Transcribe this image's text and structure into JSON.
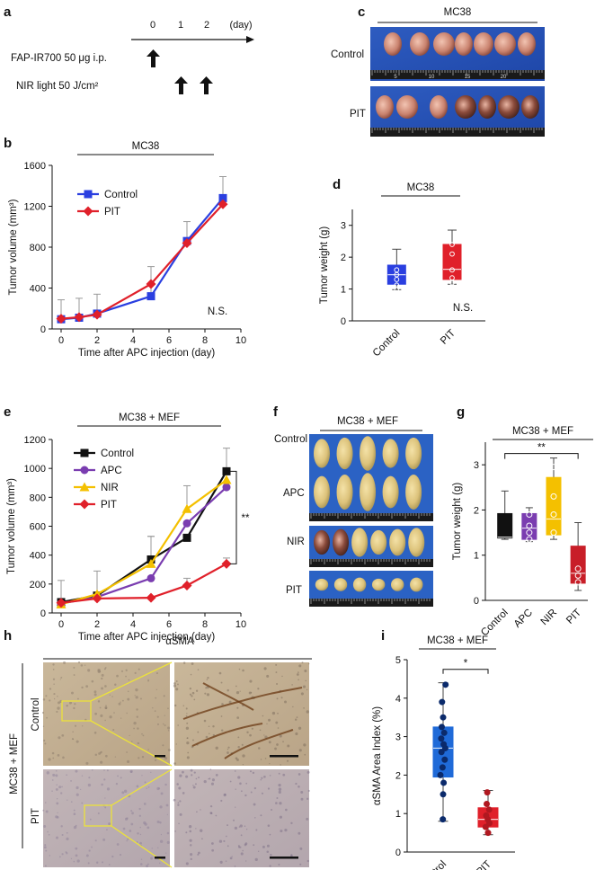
{
  "panel_letters": [
    "a",
    "b",
    "c",
    "d",
    "e",
    "f",
    "g",
    "h",
    "i"
  ],
  "panel_a": {
    "days": [
      "0",
      "1",
      "2"
    ],
    "unit": "(day)",
    "agent": "FAP-IR700 50 μg i.p.",
    "light": "NIR light 50 J/cm²"
  },
  "panel_c": {
    "title": "MC38",
    "rows": [
      "Control",
      "PIT"
    ],
    "ruler_marks": [
      "5",
      "10",
      "15",
      "20"
    ]
  },
  "panel_f": {
    "title": "MC38 + MEF",
    "rows": [
      "Control",
      "APC",
      "NIR",
      "PIT"
    ]
  },
  "panel_h": {
    "marker": "αSMA",
    "group": "MC38 + MEF",
    "rows": [
      "Control",
      "PIT"
    ]
  },
  "colors": {
    "blue": "#2a3fe0",
    "red": "#e0202a",
    "black": "#111111",
    "purple": "#7a3db0",
    "yellow": "#f4c000",
    "darkred": "#c81e28",
    "error": "#999999"
  },
  "chart_data": [
    {
      "id": "b",
      "type": "line",
      "title": "MC38",
      "xlabel": "Time after APC injection (day)",
      "ylabel": "Tumor volume (mm³)",
      "xlim": [
        -0.5,
        10
      ],
      "ylim": [
        0,
        1600
      ],
      "xticks": [
        "0",
        "2",
        "4",
        "6",
        "8",
        "10"
      ],
      "yticks": [
        "0",
        "400",
        "800",
        "1200",
        "1600"
      ],
      "series": [
        {
          "name": "Control",
          "color": "#2a3fe0",
          "marker": "square",
          "x": [
            0,
            1,
            2,
            5,
            7,
            9
          ],
          "y": [
            95,
            110,
            150,
            320,
            860,
            1280
          ],
          "err": [
            190,
            190,
            190,
            290,
            190,
            210
          ]
        },
        {
          "name": "PIT",
          "color": "#e0202a",
          "marker": "diamond",
          "x": [
            0,
            1,
            2,
            5,
            7,
            9
          ],
          "y": [
            100,
            115,
            140,
            440,
            840,
            1220
          ],
          "err": [
            0,
            0,
            0,
            0,
            0,
            0
          ]
        }
      ],
      "annotation": "N.S."
    },
    {
      "id": "d",
      "type": "box",
      "title": "MC38",
      "xlabel": "",
      "ylabel": "Tumor weight (g)",
      "ylim": [
        0,
        3.5
      ],
      "yticks": [
        "0",
        "1",
        "2",
        "3"
      ],
      "categories": [
        "Control",
        "PIT"
      ],
      "boxes": [
        {
          "name": "Control",
          "color": "#2a3fe0",
          "min": 0.98,
          "q1": 1.15,
          "median": 1.45,
          "q3": 1.75,
          "max": 2.25,
          "points": [
            1.0,
            1.12,
            1.3,
            1.45,
            1.6
          ]
        },
        {
          "name": "PIT",
          "color": "#e0202a",
          "min": 1.15,
          "q1": 1.3,
          "median": 1.62,
          "q3": 2.4,
          "max": 2.85,
          "points": [
            1.2,
            1.35,
            1.6,
            2.1,
            2.4
          ]
        }
      ],
      "annotation": "N.S."
    },
    {
      "id": "e",
      "type": "line",
      "title": "MC38 + MEF",
      "xlabel": "Time after APC injection (day)",
      "ylabel": "Tumor volume (mm³)",
      "xlim": [
        -0.5,
        10
      ],
      "ylim": [
        0,
        1200
      ],
      "xticks": [
        "0",
        "2",
        "4",
        "6",
        "8",
        "10"
      ],
      "yticks": [
        "0",
        "200",
        "400",
        "600",
        "800",
        "1000",
        "1200"
      ],
      "series": [
        {
          "name": "Control",
          "color": "#111111",
          "marker": "square",
          "x": [
            0,
            2,
            5,
            7,
            9.2
          ],
          "y": [
            75,
            120,
            370,
            520,
            980
          ],
          "err": [
            150,
            170,
            160,
            0,
            160
          ]
        },
        {
          "name": "APC",
          "color": "#7a3db0",
          "marker": "circle",
          "x": [
            0,
            2,
            5,
            7,
            9.2
          ],
          "y": [
            65,
            110,
            240,
            620,
            870
          ],
          "err": [
            0,
            0,
            0,
            0,
            0
          ]
        },
        {
          "name": "NIR",
          "color": "#f4c000",
          "marker": "triangle",
          "x": [
            0,
            2,
            5,
            7,
            9.2
          ],
          "y": [
            60,
            130,
            340,
            720,
            920
          ],
          "err": [
            0,
            0,
            190,
            160,
            0
          ]
        },
        {
          "name": "PIT",
          "color": "#e0202a",
          "marker": "diamond",
          "x": [
            0,
            2,
            5,
            7,
            9.2
          ],
          "y": [
            70,
            100,
            105,
            190,
            340
          ],
          "err": [
            0,
            0,
            0,
            50,
            40
          ]
        }
      ],
      "annotation": "**"
    },
    {
      "id": "g",
      "type": "box",
      "title": "MC38 + MEF",
      "xlabel": "",
      "ylabel": "Tumor weight (g)",
      "ylim": [
        0,
        3.5
      ],
      "yticks": [
        "0",
        "1",
        "2",
        "3"
      ],
      "categories": [
        "Control",
        "APC",
        "NIR",
        "PIT"
      ],
      "boxes": [
        {
          "name": "Control",
          "color": "#111111",
          "min": 1.35,
          "q1": 1.38,
          "median": 1.4,
          "q3": 1.92,
          "max": 2.42,
          "points": []
        },
        {
          "name": "APC",
          "color": "#7a3db0",
          "min": 1.3,
          "q1": 1.35,
          "median": 1.6,
          "q3": 1.92,
          "max": 2.05,
          "points": [
            1.35,
            1.5,
            1.65,
            1.9
          ]
        },
        {
          "name": "NIR",
          "color": "#f4c000",
          "min": 1.35,
          "q1": 1.45,
          "median": 1.8,
          "q3": 2.72,
          "max": 3.15,
          "points": [
            1.5,
            1.9,
            2.3,
            2.95
          ]
        },
        {
          "name": "PIT",
          "color": "#c81e28",
          "min": 0.22,
          "q1": 0.38,
          "median": 0.6,
          "q3": 1.2,
          "max": 1.72,
          "points": [
            0.4,
            0.55,
            0.7
          ]
        }
      ],
      "annotation": "**"
    },
    {
      "id": "i",
      "type": "box",
      "title": "MC38 + MEF",
      "xlabel": "",
      "ylabel": "αSMA Area Index (%)",
      "ylim": [
        0,
        5
      ],
      "yticks": [
        "0",
        "1",
        "2",
        "3",
        "4",
        "5"
      ],
      "categories": [
        "Control",
        "PIT"
      ],
      "boxes": [
        {
          "name": "Control",
          "color": "#1f6ad8",
          "min": 0.8,
          "q1": 1.95,
          "median": 2.7,
          "q3": 3.25,
          "max": 4.4,
          "points": [
            0.85,
            1.5,
            1.8,
            2.0,
            2.2,
            2.4,
            2.6,
            2.7,
            2.8,
            2.95,
            3.1,
            3.25,
            3.5,
            3.9,
            4.35
          ]
        },
        {
          "name": "PIT",
          "color": "#e0202a",
          "min": 0.45,
          "q1": 0.65,
          "median": 0.85,
          "q3": 1.15,
          "max": 1.6,
          "points": [
            0.5,
            0.65,
            0.75,
            0.85,
            0.95,
            1.1,
            1.25,
            1.55
          ]
        }
      ],
      "annotation": "*"
    }
  ]
}
